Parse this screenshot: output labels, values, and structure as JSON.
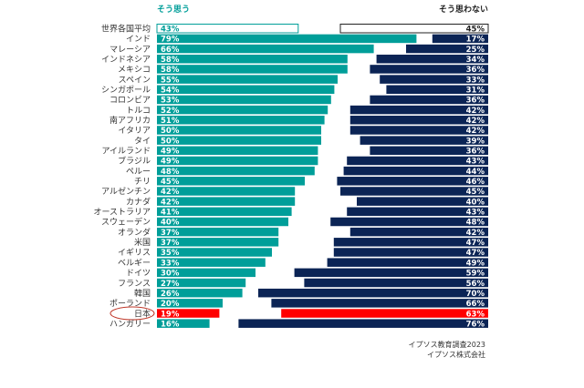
{
  "chart_data": {
    "type": "bar",
    "orientation": "horizontal-diverging",
    "series": [
      {
        "name": "そう思う",
        "color": "#009e99",
        "values": [
          43,
          79,
          66,
          58,
          58,
          55,
          54,
          53,
          52,
          51,
          50,
          50,
          49,
          49,
          48,
          45,
          42,
          42,
          41,
          40,
          37,
          37,
          35,
          33,
          30,
          27,
          26,
          20,
          19,
          16
        ]
      },
      {
        "name": "そう思わない",
        "color": "#0b2455",
        "values": [
          45,
          17,
          25,
          34,
          36,
          33,
          31,
          36,
          42,
          42,
          42,
          39,
          36,
          43,
          44,
          46,
          45,
          40,
          43,
          48,
          42,
          47,
          47,
          49,
          59,
          56,
          70,
          66,
          63,
          76
        ]
      }
    ],
    "categories": [
      "世界各国平均",
      "インド",
      "マレーシア",
      "インドネシア",
      "メキシコ",
      "スペイン",
      "シンガポール",
      "コロンビア",
      "トルコ",
      "南アフリカ",
      "イタリア",
      "タイ",
      "アイルランド",
      "ブラジル",
      "ペルー",
      "チリ",
      "アルゼンチン",
      "カナダ",
      "オーストラリア",
      "スウェーデン",
      "オランダ",
      "米国",
      "イギリス",
      "ベルギー",
      "ドイツ",
      "フランス",
      "韓国",
      "ポーランド",
      "日本",
      "ハンガリー"
    ],
    "highlight": {
      "category": "日本",
      "color": "#ff0000"
    },
    "average_style": "outline",
    "unit": "%"
  },
  "source": [
    "イプソス教育調査2023",
    "イプソス株式会社"
  ]
}
